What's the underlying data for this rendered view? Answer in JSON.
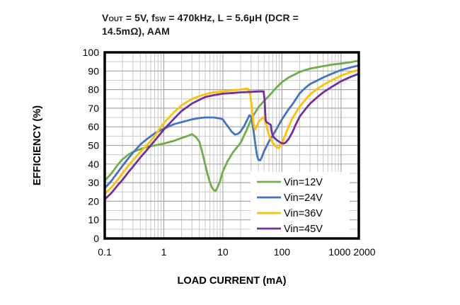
{
  "chart_data": {
    "type": "line",
    "x_scale": "log",
    "title_parts": {
      "p1": "V",
      "s1": "OUT",
      "p2": " = 5V, f",
      "s2": "SW",
      "p3": " = 470kHz, L = 5.6µH (DCR =",
      "line2": "14.5mΩ), AAM"
    },
    "xlabel": "LOAD CURRENT (mA)",
    "ylabel": "EFFICIENCY (%)",
    "xlim": [
      0.1,
      2000
    ],
    "ylim": [
      0,
      100
    ],
    "x_ticks": [
      {
        "v": 0.1,
        "label": "0.1",
        "dx": 0
      },
      {
        "v": 1,
        "label": "1",
        "dx": 0
      },
      {
        "v": 10,
        "label": "10",
        "dx": 0
      },
      {
        "v": 100,
        "label": "100",
        "dx": 0
      },
      {
        "v": 1000,
        "label": "1000",
        "dx": -2
      },
      {
        "v": 2000,
        "label": "2000",
        "dx": 8
      }
    ],
    "y_ticks": [
      0,
      10,
      20,
      30,
      40,
      50,
      60,
      70,
      80,
      90,
      100
    ],
    "y_minor_step": 5,
    "grid": {
      "major": true,
      "minor": true,
      "major_color": "#a6a6a6",
      "minor_color": "#c9c9c9"
    },
    "plot_border_color": "#000000",
    "legend": {
      "position": "bottom-right",
      "entries": [
        {
          "label": "Vin=12V",
          "color": "#70AD47"
        },
        {
          "label": "Vin=24V",
          "color": "#4472C4"
        },
        {
          "label": "Vin=36V",
          "color": "#FFC000"
        },
        {
          "label": "Vin=45V",
          "color": "#7030A0"
        }
      ]
    },
    "series": [
      {
        "name": "Vin=12V",
        "color": "#70AD47",
        "points": [
          [
            0.1,
            31
          ],
          [
            0.13,
            35
          ],
          [
            0.17,
            40
          ],
          [
            0.2,
            42.5
          ],
          [
            0.25,
            45
          ],
          [
            0.3,
            46.5
          ],
          [
            0.4,
            48
          ],
          [
            0.5,
            49
          ],
          [
            0.7,
            50
          ],
          [
            1,
            51
          ],
          [
            1.5,
            52.5
          ],
          [
            2,
            54
          ],
          [
            2.5,
            55
          ],
          [
            3,
            56
          ],
          [
            3.5,
            54.5
          ],
          [
            4,
            52
          ],
          [
            4.5,
            46
          ],
          [
            5,
            40
          ],
          [
            5.5,
            34.5
          ],
          [
            6,
            30.5
          ],
          [
            6.5,
            27.5
          ],
          [
            7,
            26
          ],
          [
            7.5,
            25.5
          ],
          [
            8,
            27
          ],
          [
            9,
            31
          ],
          [
            10,
            36
          ],
          [
            12,
            41.5
          ],
          [
            15,
            46.5
          ],
          [
            20,
            51.5
          ],
          [
            25,
            58
          ],
          [
            30,
            64
          ],
          [
            35,
            67.5
          ],
          [
            40,
            70.5
          ],
          [
            50,
            74
          ],
          [
            60,
            76.5
          ],
          [
            80,
            81
          ],
          [
            100,
            84
          ],
          [
            130,
            86.5
          ],
          [
            150,
            87.5
          ],
          [
            200,
            89.5
          ],
          [
            300,
            91.3
          ],
          [
            400,
            92
          ],
          [
            500,
            92.6
          ],
          [
            700,
            93.4
          ],
          [
            1000,
            94
          ],
          [
            1500,
            94.8
          ],
          [
            2000,
            95.5
          ]
        ]
      },
      {
        "name": "Vin=24V",
        "color": "#4472C4",
        "points": [
          [
            0.1,
            27
          ],
          [
            0.13,
            31
          ],
          [
            0.17,
            36
          ],
          [
            0.2,
            39
          ],
          [
            0.25,
            43
          ],
          [
            0.3,
            46
          ],
          [
            0.4,
            50.5
          ],
          [
            0.5,
            53
          ],
          [
            0.7,
            56.5
          ],
          [
            1,
            59
          ],
          [
            1.5,
            61.5
          ],
          [
            2,
            62.5
          ],
          [
            3,
            64
          ],
          [
            4,
            64.7
          ],
          [
            5,
            65
          ],
          [
            7,
            65
          ],
          [
            9,
            64.5
          ],
          [
            10,
            64
          ],
          [
            11,
            62
          ],
          [
            12,
            60.5
          ],
          [
            14,
            57.5
          ],
          [
            16,
            55.8
          ],
          [
            18,
            56.2
          ],
          [
            20,
            57.5
          ],
          [
            23,
            60.5
          ],
          [
            26,
            64
          ],
          [
            28,
            66.2
          ],
          [
            30,
            65.5
          ],
          [
            32,
            61
          ],
          [
            34,
            55
          ],
          [
            36,
            49
          ],
          [
            38,
            44.5
          ],
          [
            40,
            42.3
          ],
          [
            43,
            42
          ],
          [
            46,
            44
          ],
          [
            50,
            47
          ],
          [
            60,
            52
          ],
          [
            70,
            55.5
          ],
          [
            80,
            58.5
          ],
          [
            100,
            64
          ],
          [
            130,
            69.5
          ],
          [
            150,
            72
          ],
          [
            200,
            78
          ],
          [
            250,
            81
          ],
          [
            300,
            83
          ],
          [
            400,
            85
          ],
          [
            500,
            86.5
          ],
          [
            700,
            88.5
          ],
          [
            1000,
            90.5
          ],
          [
            1500,
            92
          ],
          [
            2000,
            93
          ]
        ]
      },
      {
        "name": "Vin=36V",
        "color": "#FFC000",
        "points": [
          [
            0.1,
            24
          ],
          [
            0.13,
            27.5
          ],
          [
            0.17,
            32
          ],
          [
            0.2,
            35
          ],
          [
            0.25,
            39
          ],
          [
            0.3,
            42
          ],
          [
            0.4,
            46.5
          ],
          [
            0.5,
            49.5
          ],
          [
            0.7,
            55
          ],
          [
            1,
            62
          ],
          [
            1.5,
            68
          ],
          [
            2,
            71.5
          ],
          [
            2.5,
            73.5
          ],
          [
            3,
            75
          ],
          [
            4,
            76.5
          ],
          [
            5,
            77.5
          ],
          [
            7,
            78.5
          ],
          [
            10,
            79
          ],
          [
            15,
            79.7
          ],
          [
            20,
            80
          ],
          [
            25,
            80.5
          ],
          [
            27,
            80.3
          ],
          [
            29,
            78
          ],
          [
            31,
            70
          ],
          [
            33,
            62
          ],
          [
            35,
            58.5
          ],
          [
            37,
            60
          ],
          [
            40,
            62.5
          ],
          [
            44,
            64
          ],
          [
            48,
            65
          ],
          [
            52,
            63.5
          ],
          [
            56,
            59
          ],
          [
            60,
            56
          ],
          [
            68,
            52
          ],
          [
            78,
            49.5
          ],
          [
            88,
            48.5
          ],
          [
            100,
            51
          ],
          [
            115,
            56
          ],
          [
            130,
            60
          ],
          [
            150,
            64.5
          ],
          [
            200,
            71
          ],
          [
            300,
            77.5
          ],
          [
            400,
            80.5
          ],
          [
            500,
            82.5
          ],
          [
            700,
            85
          ],
          [
            1000,
            87.5
          ],
          [
            1500,
            89.5
          ],
          [
            2000,
            90.5
          ]
        ]
      },
      {
        "name": "Vin=45V",
        "color": "#7030A0",
        "points": [
          [
            0.1,
            21
          ],
          [
            0.13,
            24.5
          ],
          [
            0.17,
            29
          ],
          [
            0.2,
            31.5
          ],
          [
            0.25,
            35.5
          ],
          [
            0.3,
            38.5
          ],
          [
            0.4,
            43.5
          ],
          [
            0.5,
            47
          ],
          [
            0.7,
            52.5
          ],
          [
            1,
            58.5
          ],
          [
            1.5,
            64.5
          ],
          [
            2,
            68.5
          ],
          [
            3,
            72.5
          ],
          [
            4,
            74.5
          ],
          [
            5,
            76
          ],
          [
            7,
            77
          ],
          [
            10,
            77.8
          ],
          [
            15,
            78.2
          ],
          [
            20,
            78.5
          ],
          [
            30,
            78.8
          ],
          [
            40,
            79
          ],
          [
            45,
            79
          ],
          [
            49,
            79
          ],
          [
            51,
            74
          ],
          [
            52,
            68
          ],
          [
            53,
            63.5
          ],
          [
            55,
            62.5
          ],
          [
            58,
            62
          ],
          [
            62,
            61.5
          ],
          [
            65,
            61
          ],
          [
            66,
            58.5
          ],
          [
            68,
            56.5
          ],
          [
            72,
            54.5
          ],
          [
            78,
            53.5
          ],
          [
            85,
            52.5
          ],
          [
            95,
            51.5
          ],
          [
            105,
            51
          ],
          [
            115,
            51.5
          ],
          [
            130,
            53.5
          ],
          [
            150,
            57
          ],
          [
            170,
            61
          ],
          [
            200,
            65.5
          ],
          [
            250,
            69.5
          ],
          [
            300,
            72.5
          ],
          [
            400,
            76
          ],
          [
            500,
            78.5
          ],
          [
            700,
            81.5
          ],
          [
            1000,
            84.5
          ],
          [
            1500,
            87
          ],
          [
            2000,
            88.5
          ]
        ]
      }
    ]
  }
}
